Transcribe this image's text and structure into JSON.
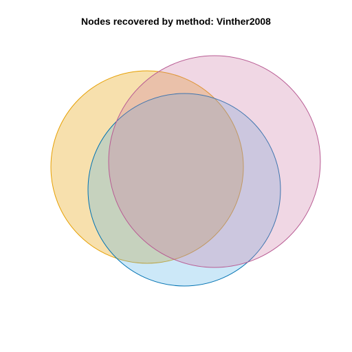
{
  "title": "Nodes recovered by method: Vinther2008",
  "venn": {
    "sets": [
      {
        "fill": "#E69F00",
        "stroke": "#E69F00"
      },
      {
        "fill": "#56B4E9",
        "stroke": "#0072B2"
      },
      {
        "fill": "#CC79A7",
        "stroke": "#B85B93"
      }
    ]
  }
}
